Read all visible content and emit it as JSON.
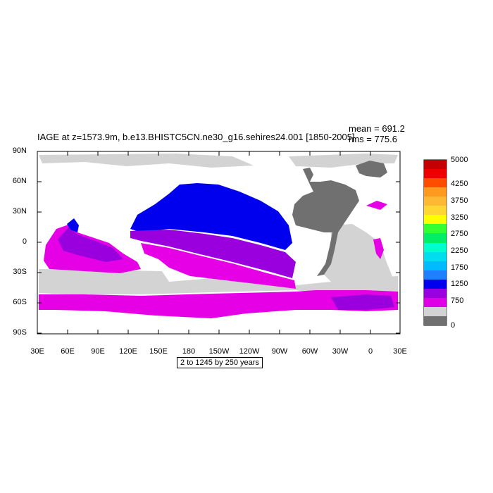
{
  "title": "IAGE at z=1573.9m, b.e13.BHISTC5CN.ne30_g16.sehires24.001 [1850-2005]",
  "stats": {
    "mean": "mean = 691.2",
    "rms": "rms = 775.6"
  },
  "x_ticks": [
    "30E",
    "60E",
    "90E",
    "120E",
    "150E",
    "180",
    "150W",
    "120W",
    "90W",
    "60W",
    "30W",
    "0",
    "30E"
  ],
  "y_ticks": [
    "90N",
    "60N",
    "30N",
    "0",
    "30S",
    "60S",
    "90S"
  ],
  "contour_note": "2 to 1245 by 250 years",
  "colorbar": {
    "labels": [
      "5000",
      "4250",
      "3750",
      "3250",
      "2750",
      "2250",
      "1750",
      "1250",
      "750",
      "0"
    ],
    "colors": [
      "#c40000",
      "#ee0000",
      "#ff4d00",
      "#ff9a1e",
      "#ffb833",
      "#ffd633",
      "#ffff00",
      "#33ff33",
      "#00ee66",
      "#00ffcc",
      "#00ddee",
      "#00bbff",
      "#1e7fff",
      "#0000ee",
      "#9a00dd",
      "#e000e8",
      "#d3d3d3",
      "#707070"
    ]
  },
  "field_classes": {
    "land": "#ffffff",
    "missing_or_mask": "#d3d3d3",
    "low_age": "#707070",
    "age_750_1000": "#e600e6",
    "age_1000_1250": "#9a00dd",
    "age_1250_1500": "#0000ee"
  }
}
